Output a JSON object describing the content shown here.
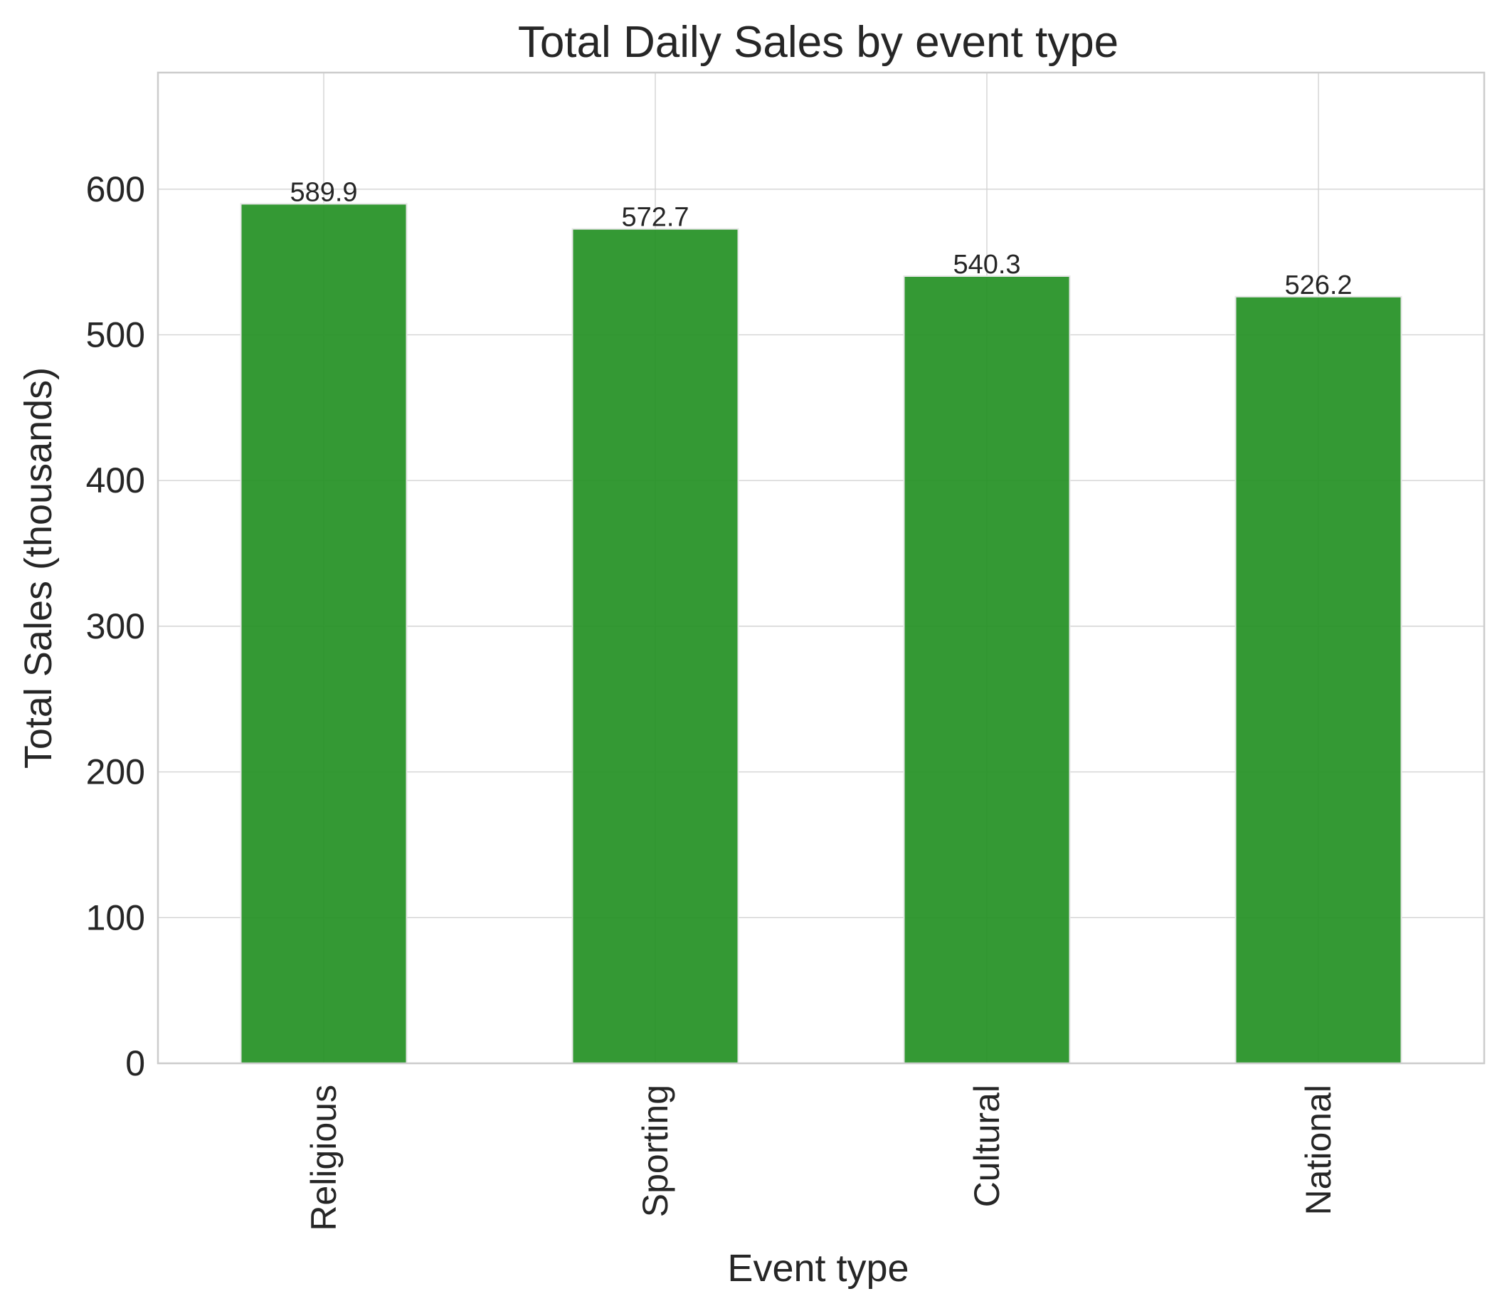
{
  "chart_data": {
    "type": "bar",
    "title": "Total Daily Sales by event type",
    "xlabel": "Event type",
    "ylabel": "Total Sales (thousands)",
    "categories": [
      "Religious",
      "Sporting",
      "Cultural",
      "National"
    ],
    "values": [
      589.9,
      572.7,
      540.3,
      526.2
    ],
    "value_labels": [
      "589.9",
      "572.7",
      "540.3",
      "526.2"
    ],
    "ylim": [
      0,
      680
    ],
    "yticks": [
      0,
      100,
      200,
      300,
      400,
      500,
      600
    ],
    "ytick_labels": [
      "0",
      "100",
      "200",
      "300",
      "400",
      "500",
      "600"
    ],
    "grid": true,
    "bar_color": "#239023"
  }
}
